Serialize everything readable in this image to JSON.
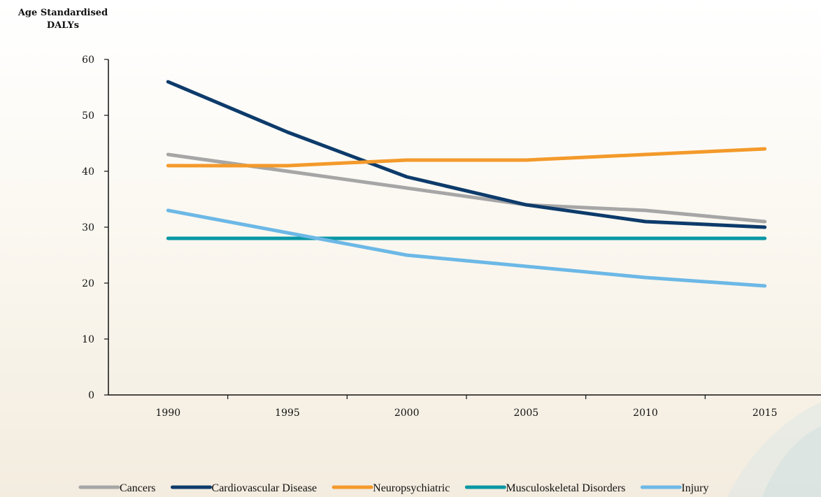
{
  "chart_data": {
    "type": "line",
    "title": "",
    "xlabel": "",
    "ylabel": "Age Standardised DALYs",
    "ylabel_lines": [
      "Age Standardised",
      "DALYs"
    ],
    "x": [
      "1990",
      "1995",
      "2000",
      "2005",
      "2010",
      "2015"
    ],
    "ylim": [
      0,
      60
    ],
    "yticks": [
      0,
      10,
      20,
      30,
      40,
      50,
      60
    ],
    "legend": "bottom",
    "grid": false,
    "series": [
      {
        "name": "Cancers",
        "color": "#a6a6a6",
        "values": [
          43,
          40,
          37,
          34,
          33,
          31
        ]
      },
      {
        "name": "Cardiovascular Disease",
        "color": "#0d3b6b",
        "values": [
          56,
          47,
          39,
          34,
          31,
          30
        ]
      },
      {
        "name": "Neuropsychiatric",
        "color": "#f39a2b",
        "values": [
          41,
          41,
          42,
          42,
          43,
          44
        ]
      },
      {
        "name": "Musculoskeletal Disorders",
        "color": "#0a97a4",
        "values": [
          28,
          28,
          28,
          28,
          28,
          28
        ]
      },
      {
        "name": "Injury",
        "color": "#6cb8e6",
        "values": [
          33,
          29,
          25,
          23,
          21,
          19.5
        ]
      }
    ]
  }
}
